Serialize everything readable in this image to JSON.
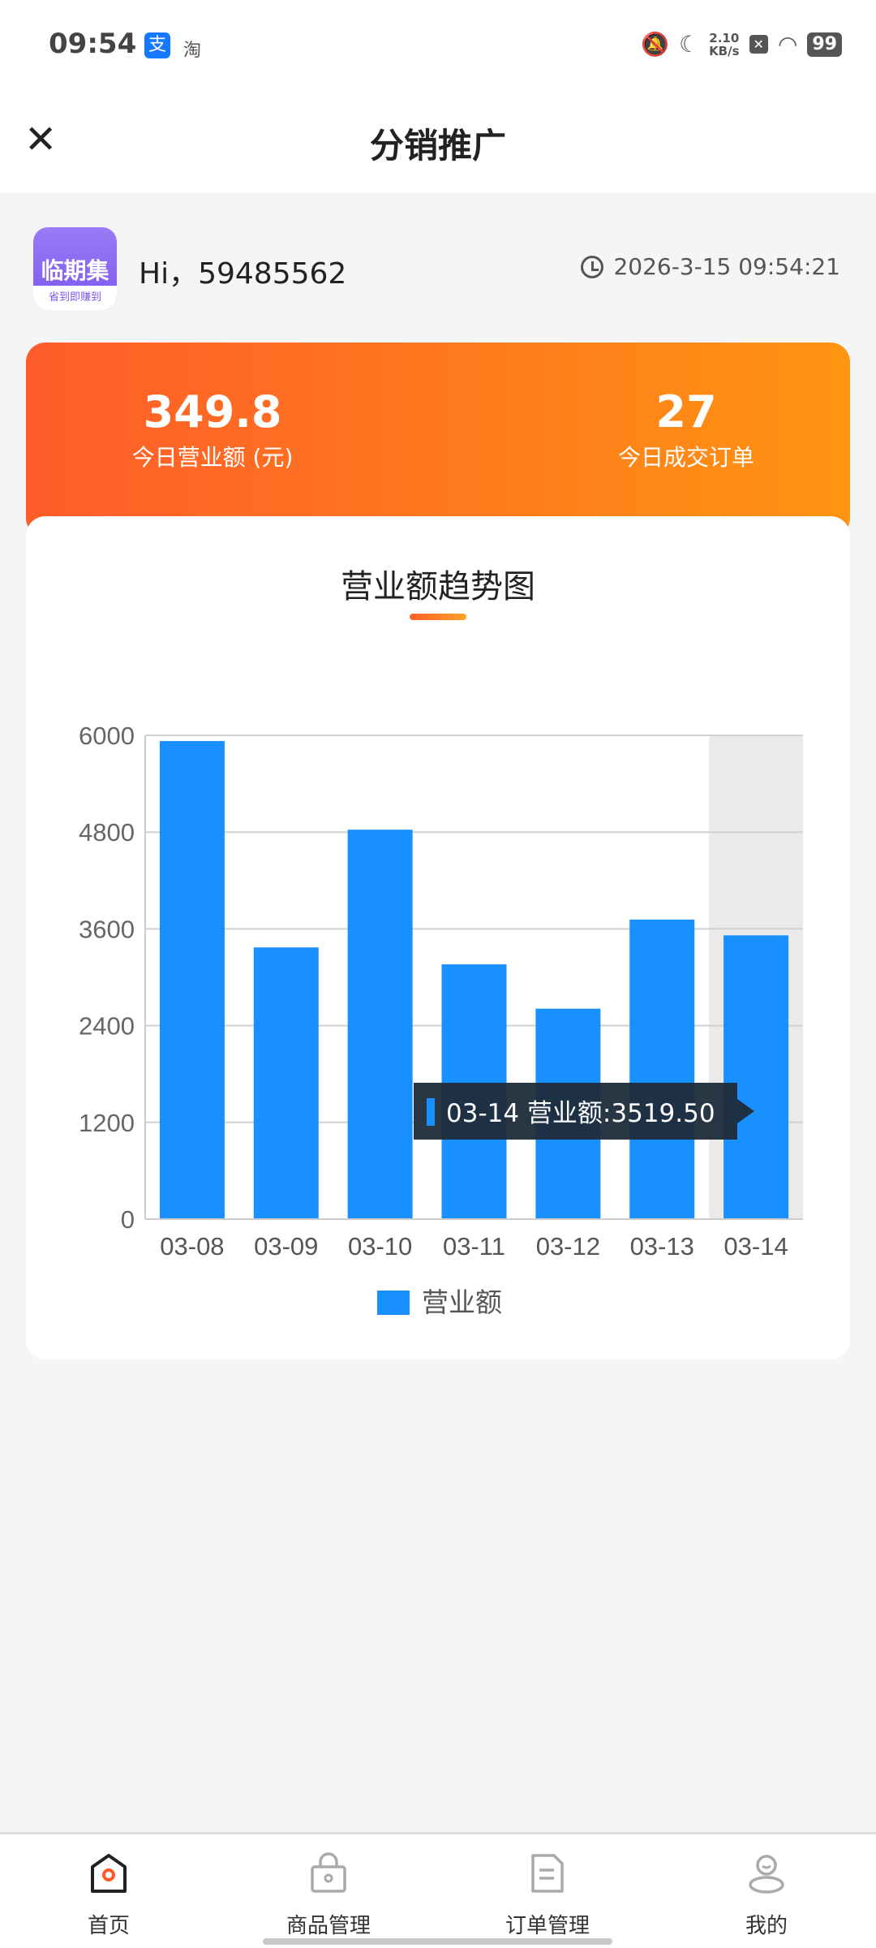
{
  "status_bar": {
    "time": "09:54",
    "alipay_icon": "支",
    "taobao_icon": "淘",
    "speed_value": "2.10",
    "speed_unit": "KB/s",
    "battery": "99"
  },
  "header": {
    "title": "分销推广",
    "close_icon": "close-icon"
  },
  "user": {
    "avatar_title": "临期集",
    "avatar_slogan": "省到即赚到",
    "greeting": "Hi，59485562",
    "timestamp": "2026-3-15 09:54:21"
  },
  "stats": [
    {
      "value": "349.8",
      "label": "今日营业额 (元)"
    },
    {
      "value": "27",
      "label": "今日成交订单"
    }
  ],
  "colors": {
    "accent": "#ff5c2a",
    "bar": "#1890ff",
    "tooltip_bg": "#1e2b3a"
  },
  "chart_data": {
    "type": "bar",
    "title": "营业额趋势图",
    "categories": [
      "03-08",
      "03-09",
      "03-10",
      "03-11",
      "03-12",
      "03-13",
      "03-14"
    ],
    "series": [
      {
        "name": "营业额",
        "values": [
          5930,
          3370,
          4830,
          3160,
          2610,
          3715,
          3519.5
        ]
      }
    ],
    "yticks": [
      "0",
      "1200",
      "2400",
      "3600",
      "4800",
      "6000"
    ],
    "ylim": [
      0,
      6000
    ],
    "grid": true,
    "legend": "bottom",
    "highlighted_index": 6,
    "tooltip": "03-14 营业额:3519.50"
  },
  "nav": [
    {
      "label": "首页",
      "icon": "home-icon",
      "active": true
    },
    {
      "label": "商品管理",
      "icon": "bag-icon"
    },
    {
      "label": "订单管理",
      "icon": "document-icon"
    },
    {
      "label": "我的",
      "icon": "user-icon"
    }
  ]
}
